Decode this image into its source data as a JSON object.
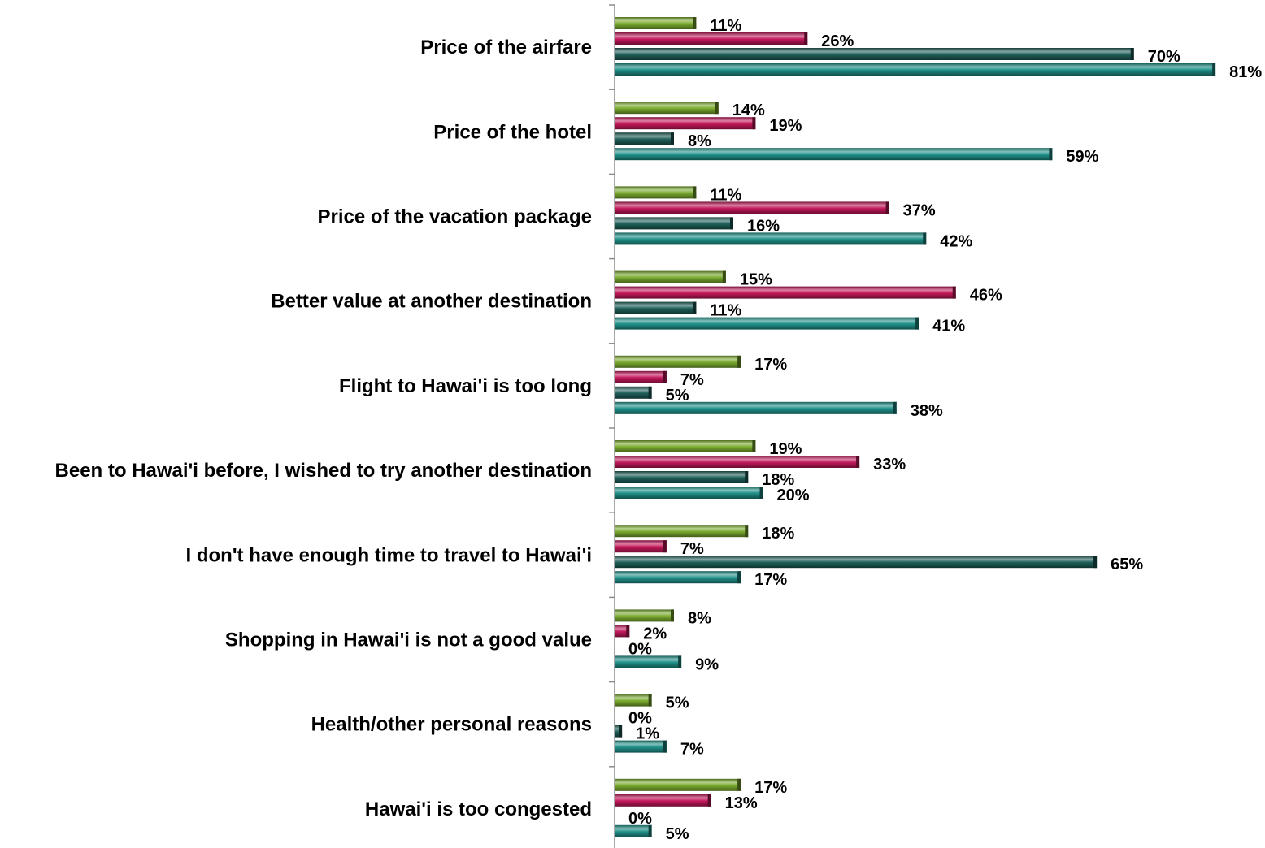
{
  "chart_data": {
    "type": "bar",
    "orientation": "horizontal",
    "categories": [
      "Price of the airfare",
      "Price of the hotel",
      "Price of the vacation package",
      "Better value at another destination",
      "Flight to Hawai'i is too long",
      "Been to Hawai'i before, I wished to try another destination",
      "I don't have enough time to travel to Hawai'i",
      "Shopping in Hawai'i is not a good value",
      "Health/other personal reasons",
      "Hawai'i is too congested"
    ],
    "series": [
      {
        "values": [
          11,
          14,
          11,
          15,
          17,
          19,
          18,
          8,
          5,
          17
        ],
        "labels": [
          "11%",
          "14%",
          "11%",
          "15%",
          "17%",
          "19%",
          "18%",
          "8%",
          "5%",
          "17%"
        ],
        "color": "#7aaa2e"
      },
      {
        "values": [
          26,
          19,
          37,
          46,
          7,
          33,
          7,
          2,
          0,
          13
        ],
        "labels": [
          "26%",
          "19%",
          "37%",
          "46%",
          "7%",
          "33%",
          "7%",
          "2%",
          "0%",
          "13%"
        ],
        "color": "#c2185b"
      },
      {
        "values": [
          70,
          8,
          16,
          11,
          5,
          18,
          65,
          0,
          1,
          0
        ],
        "labels": [
          "70%",
          "8%",
          "16%",
          "11%",
          "5%",
          "18%",
          "65%",
          "0%",
          "1%",
          "0%"
        ],
        "color": "#1e5e58"
      },
      {
        "values": [
          81,
          59,
          42,
          41,
          38,
          20,
          17,
          9,
          7,
          5
        ],
        "labels": [
          "81%",
          "59%",
          "42%",
          "41%",
          "38%",
          "20%",
          "17%",
          "9%",
          "7%",
          "5%"
        ],
        "color": "#1f9088"
      }
    ],
    "xlim": [
      0,
      100
    ],
    "grid": false,
    "legend": "none"
  }
}
